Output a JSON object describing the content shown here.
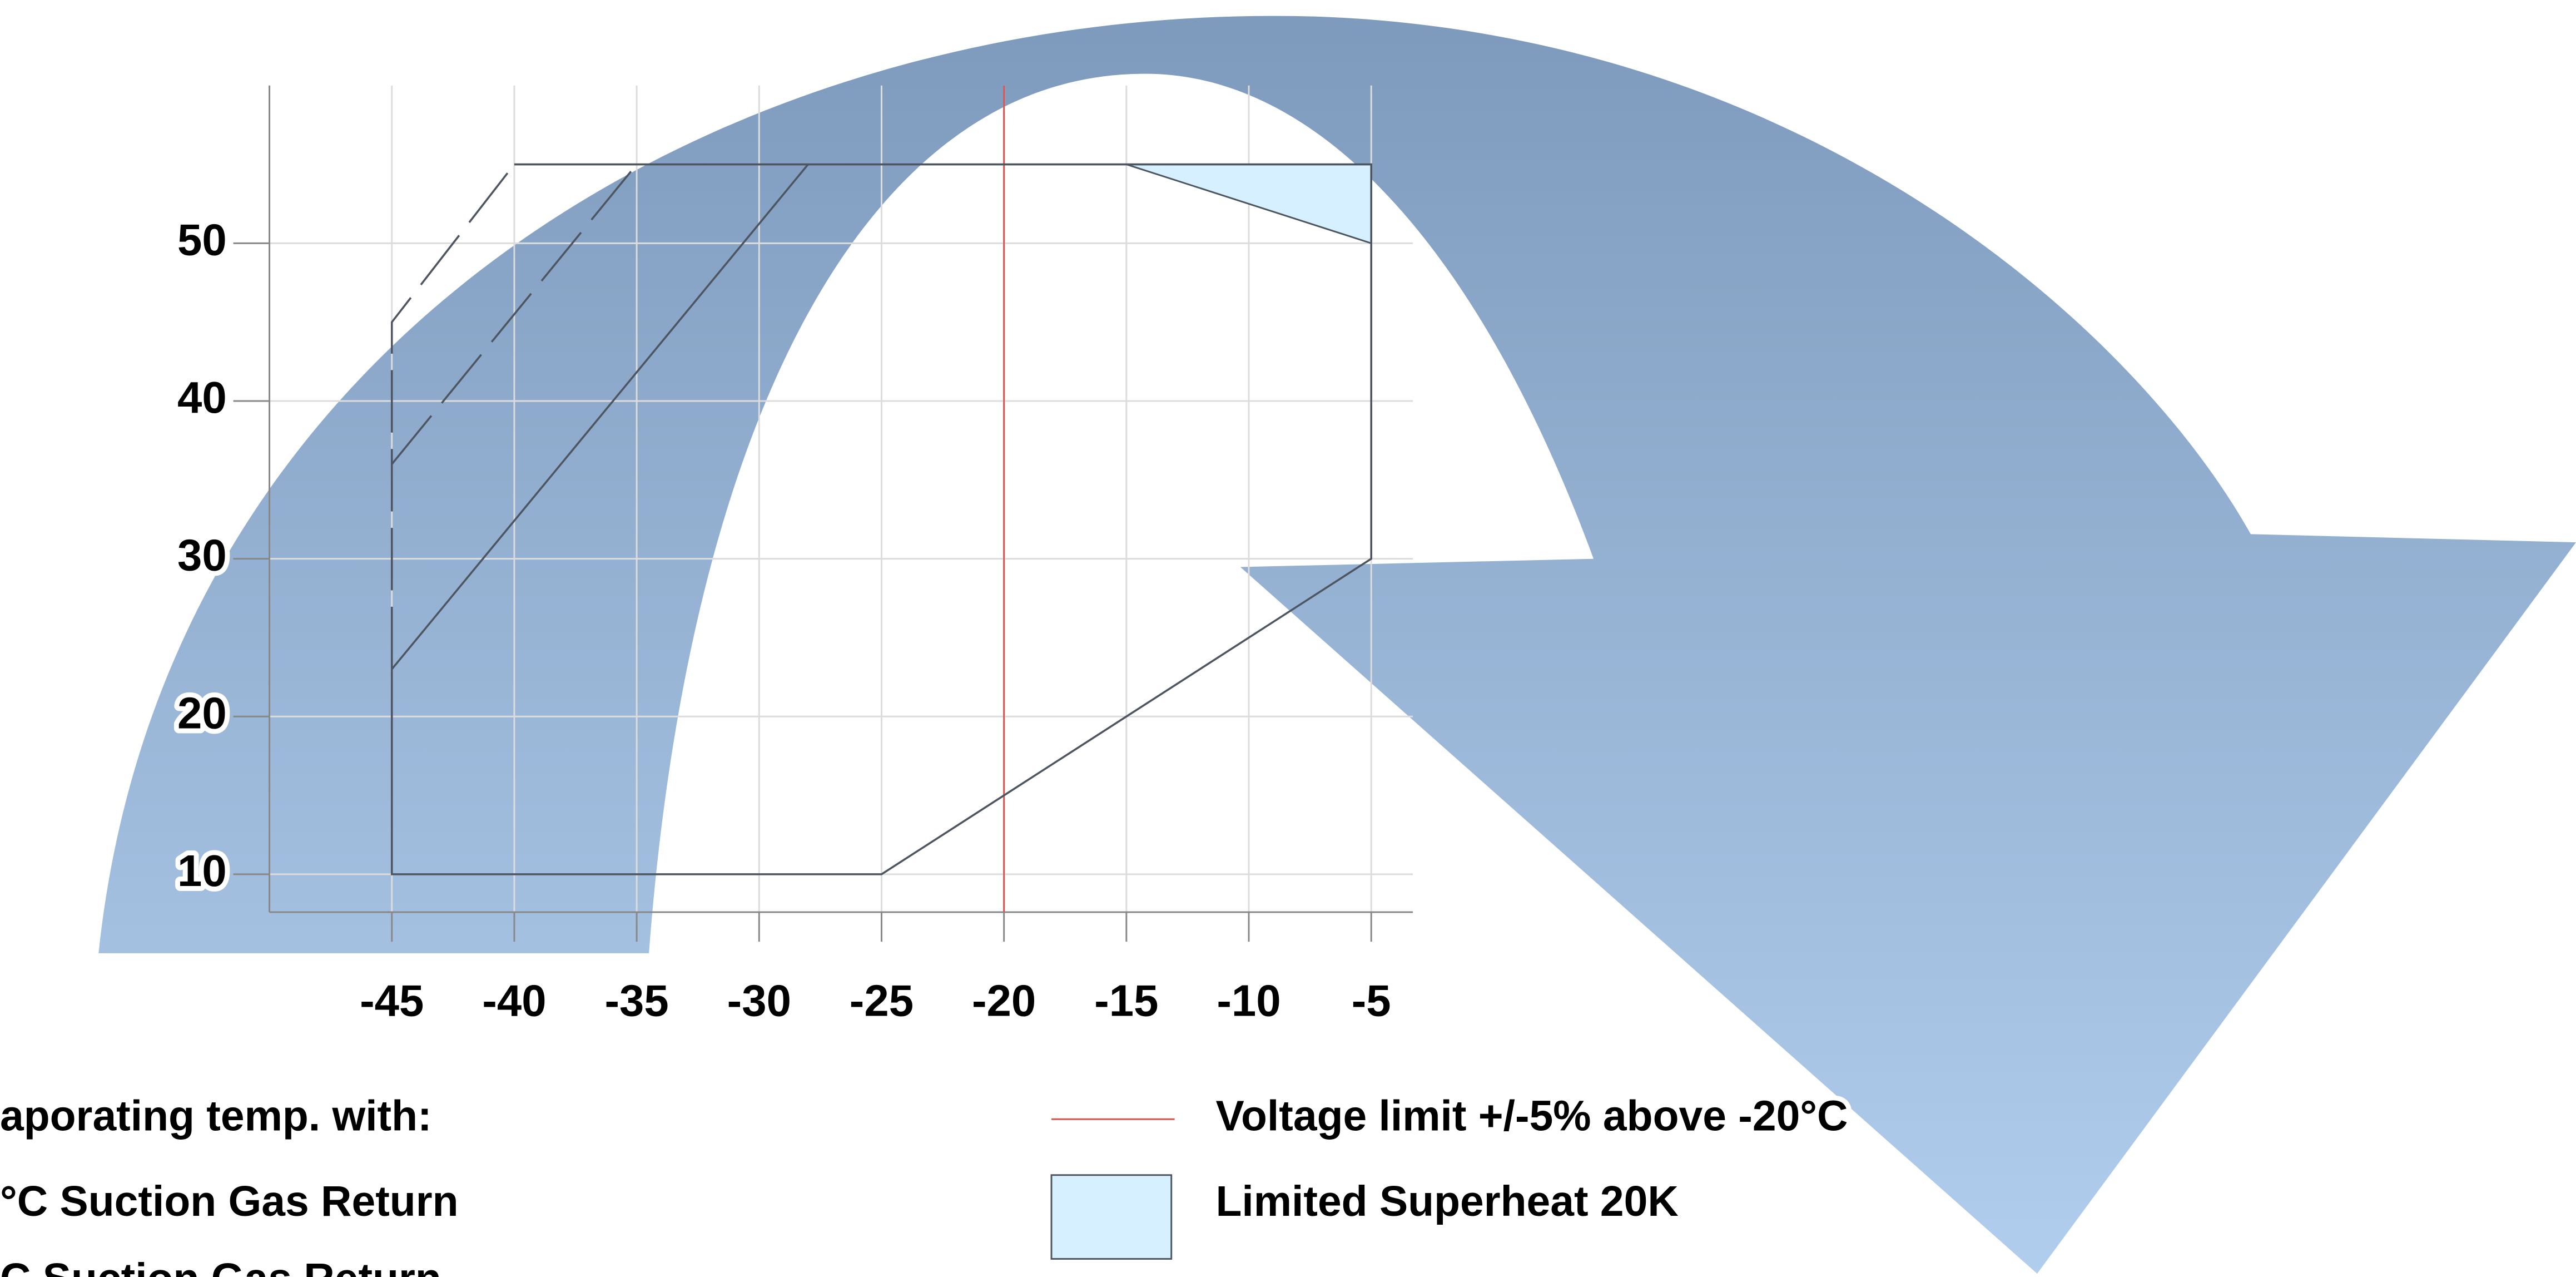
{
  "chart_data": {
    "type": "line",
    "xlim": [
      -50,
      -3.3
    ],
    "ylim": [
      7.6,
      60
    ],
    "xticks": [
      -45,
      -40,
      -35,
      -30,
      -25,
      -20,
      -15,
      -10,
      -5
    ],
    "yticks": [
      10,
      20,
      30,
      40,
      50
    ],
    "grid": true,
    "series": [
      {
        "color": "#4d5560",
        "dashed": false,
        "x": [
          -45,
          -45,
          -25,
          -5,
          -5,
          -40
        ],
        "y": [
          23,
          10,
          10,
          30,
          55,
          55
        ]
      },
      {
        "color": "#4d5560",
        "dashed": true,
        "x": [
          -45,
          -45,
          -40
        ],
        "y": [
          23,
          45,
          55
        ]
      },
      {
        "color": "#4d5560",
        "dashed": false,
        "x": [
          -45,
          -28
        ],
        "y": [
          23,
          55
        ]
      },
      {
        "color": "#4d5560",
        "dashed": true,
        "x": [
          -45,
          -35
        ],
        "y": [
          36,
          55
        ]
      }
    ],
    "voltage_limit": {
      "x": -20,
      "color": "#d9534f",
      "label": "Voltage limit +/-5% above -20°C"
    },
    "superheat_area": {
      "x": [
        -15,
        -5,
        -5
      ],
      "y": [
        55,
        55,
        50
      ],
      "color": "#d6f0ff",
      "label": "Limited Superheat 20K"
    },
    "legend_left": [
      "aporating temp. with:",
      "°C Suction Gas Return",
      "C Suction Gas Return"
    ]
  }
}
